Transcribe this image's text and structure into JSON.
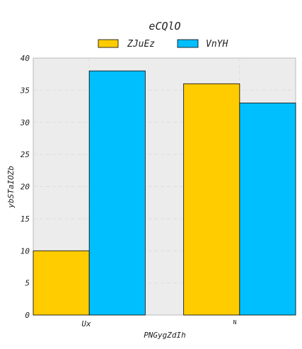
{
  "chart_data": {
    "type": "bar",
    "title": "eCQlO",
    "xlabel": "PNGygZdIh",
    "ylabel": "ybSTaIOZb",
    "categories": [
      "Ux",
      "N"
    ],
    "series": [
      {
        "name": "ZJuEz",
        "values": [
          10,
          36
        ],
        "color": "#ffcc00"
      },
      {
        "name": "VnYH",
        "values": [
          38,
          33
        ],
        "color": "#00bfff"
      }
    ],
    "ylim": [
      0,
      40
    ],
    "yticks": [
      "0",
      "5",
      "10",
      "15",
      "20",
      "25",
      "30",
      "35",
      "40"
    ],
    "grid": true,
    "legend": "top-center",
    "colors": {
      "plot_background": "#ececec",
      "grid": "#dddddd",
      "bar_edge": "#000000"
    }
  }
}
